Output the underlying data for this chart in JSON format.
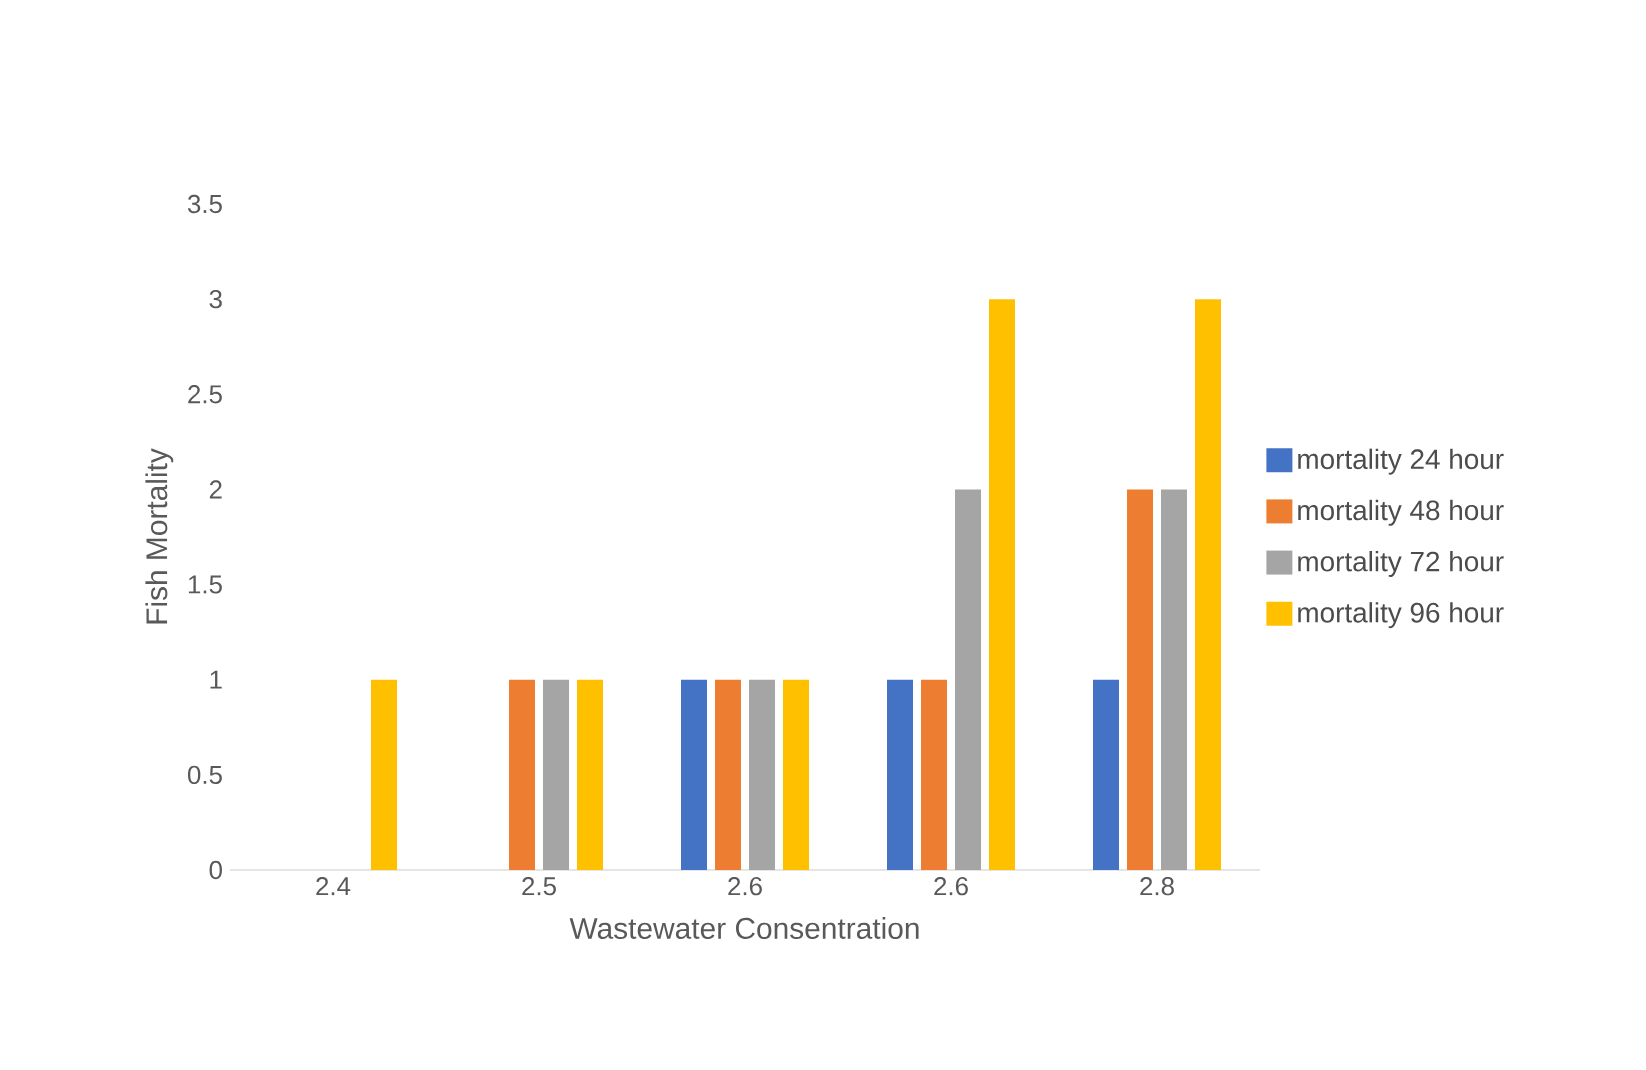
{
  "chart_data": {
    "type": "bar",
    "xlabel": "Wastewater Consentration",
    "ylabel": "Fish Mortality",
    "categories": [
      "2.4",
      "2.5",
      "2.6",
      "2.6",
      "2.8"
    ],
    "series": [
      {
        "name": "mortality 24 hour",
        "color": "#4472c4",
        "values": [
          0,
          0,
          1,
          1,
          1
        ]
      },
      {
        "name": "mortality 48 hour",
        "color": "#ed7d31",
        "values": [
          0,
          1,
          1,
          1,
          2
        ]
      },
      {
        "name": "mortality 72 hour",
        "color": "#a5a5a5",
        "values": [
          0,
          1,
          1,
          2,
          2
        ]
      },
      {
        "name": "mortality 96 hour",
        "color": "#ffc000",
        "values": [
          1,
          1,
          1,
          3,
          3
        ]
      }
    ],
    "ylim": [
      0,
      3.5
    ],
    "yticks": [
      0,
      0.5,
      1,
      1.5,
      2,
      2.5,
      3,
      3.5
    ],
    "grid": false,
    "legend": "right"
  }
}
